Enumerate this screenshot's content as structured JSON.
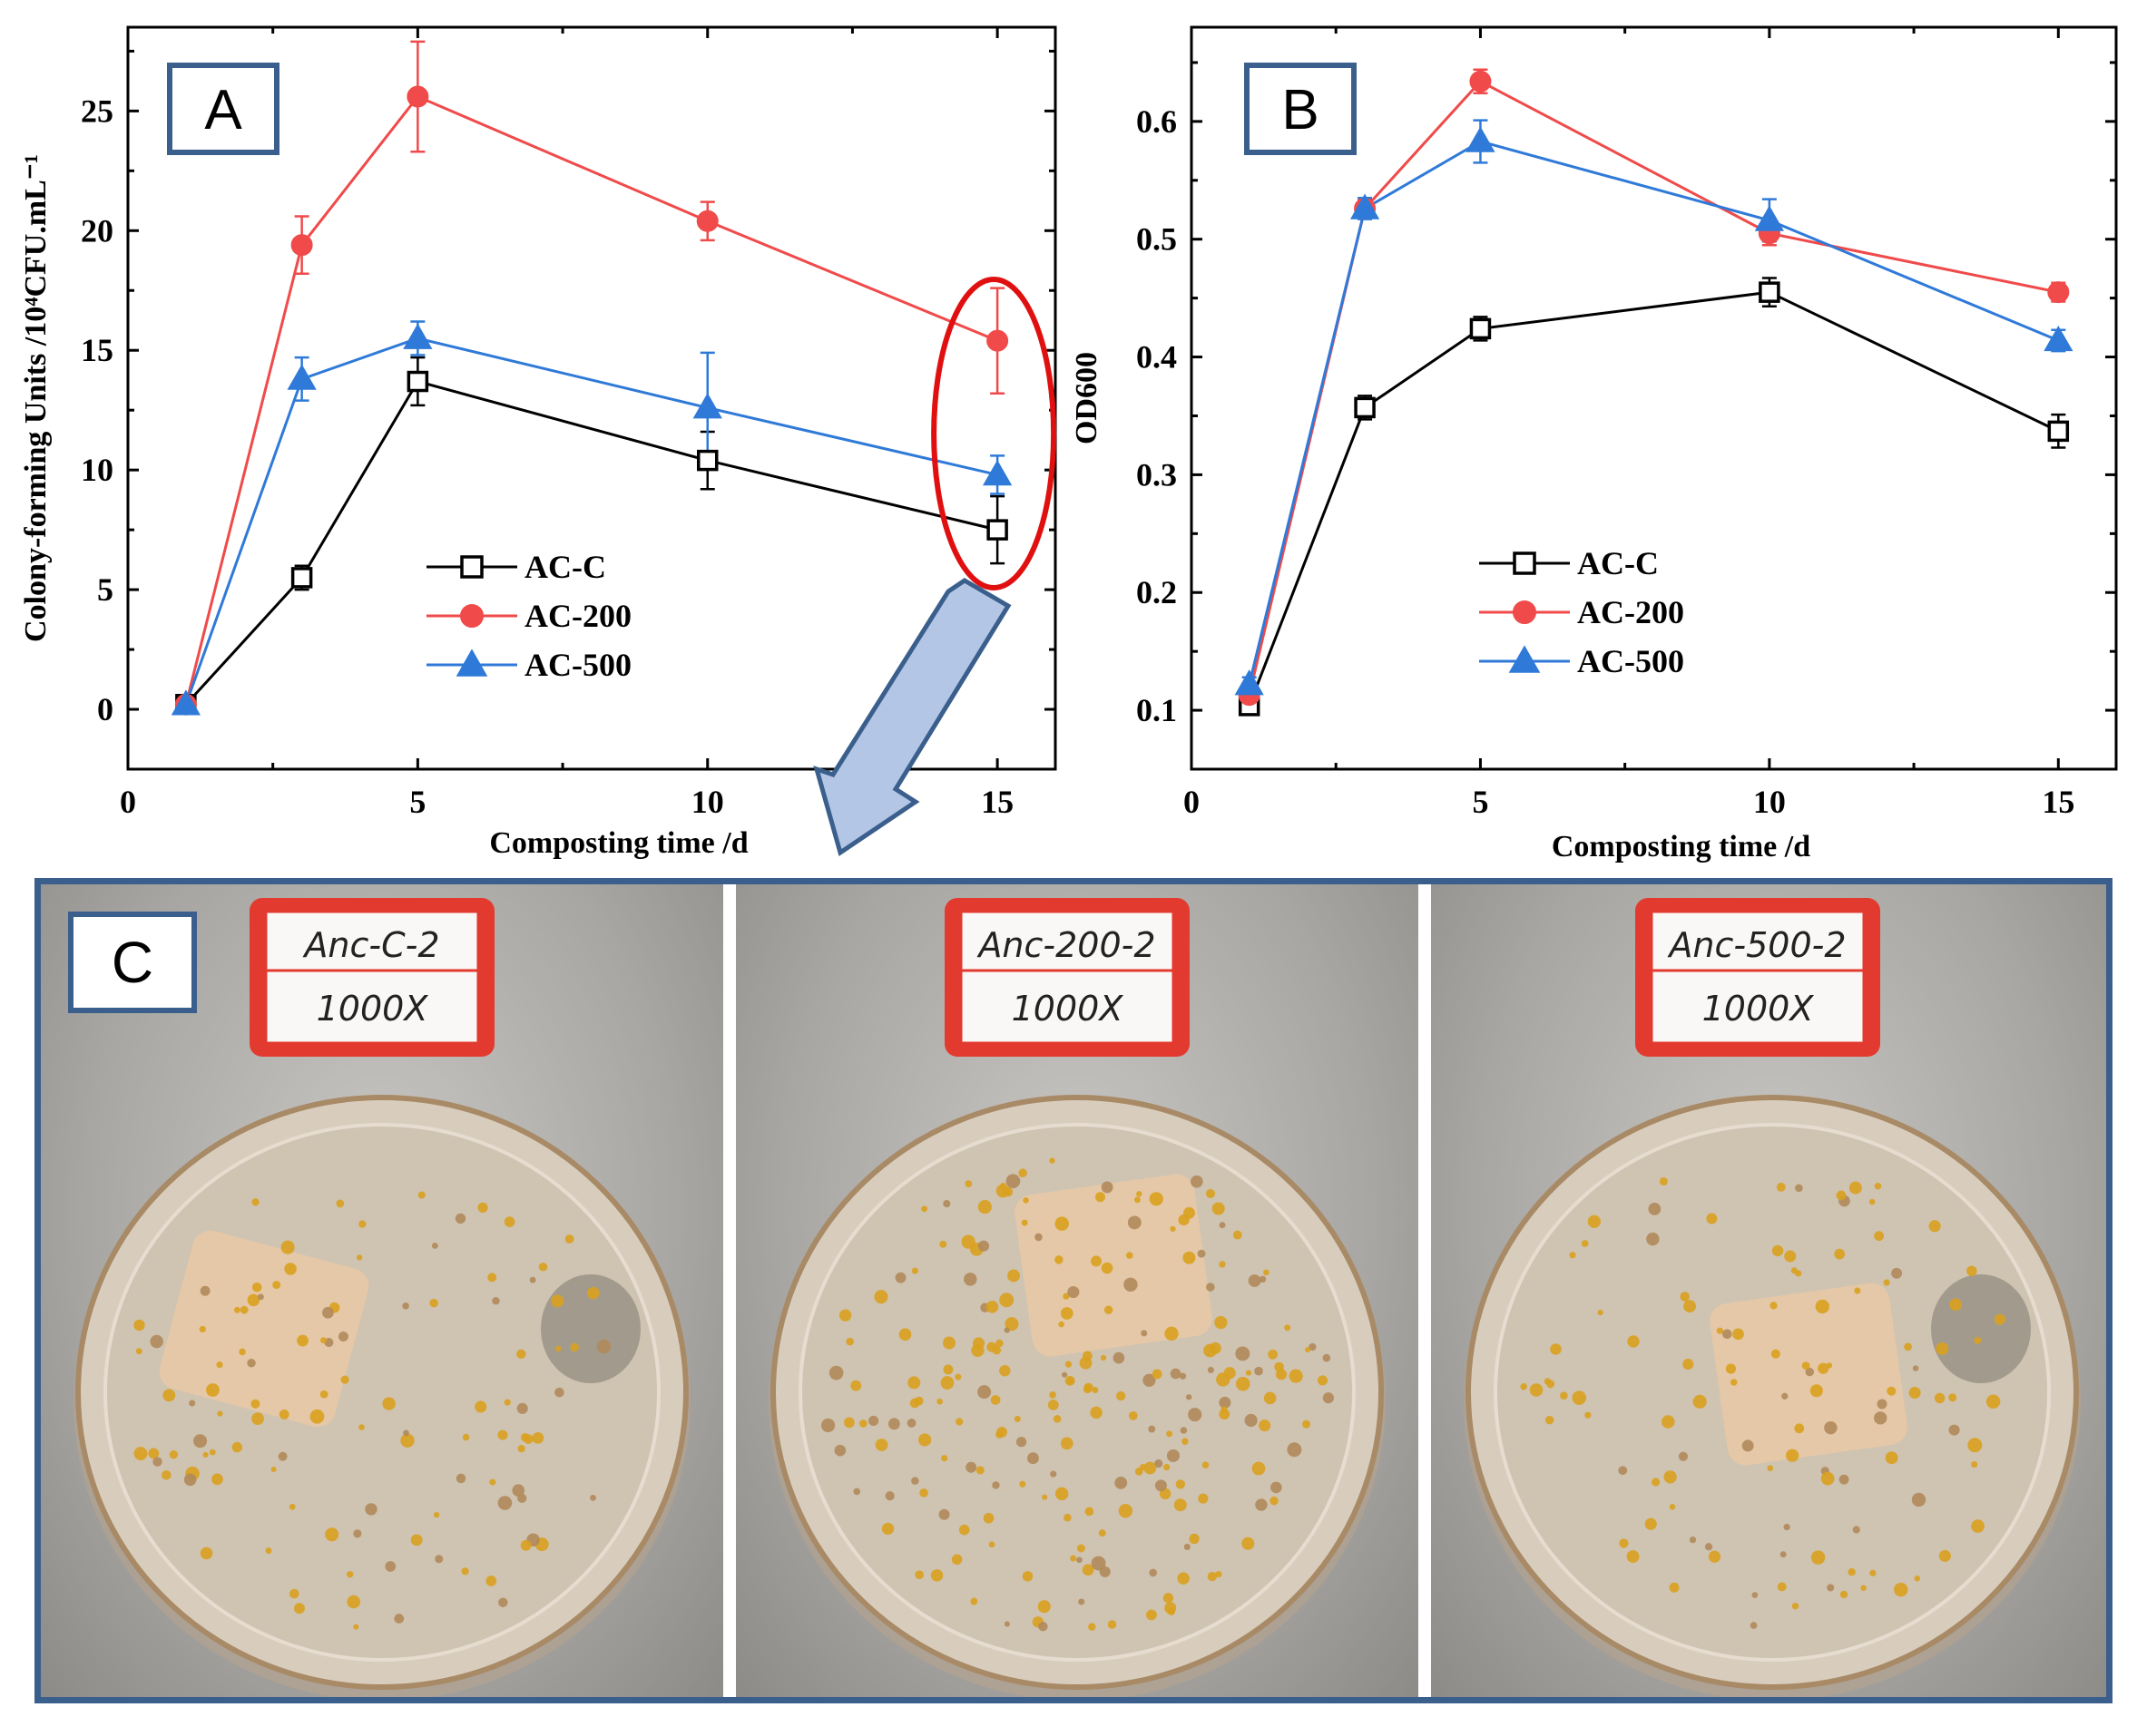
{
  "chart_data": [
    {
      "panel": "A",
      "type": "line",
      "x": [
        1,
        3,
        5,
        10,
        15
      ],
      "xlabel": "Composting time /d",
      "ylabel": "Colony-forming Units /10⁴CFU.mL⁻¹",
      "xlim": [
        0,
        16
      ],
      "ylim": [
        -2.5,
        28.5
      ],
      "xticks": [
        "0",
        "5",
        "10",
        "15"
      ],
      "yticks": [
        "0",
        "5",
        "10",
        "15",
        "20",
        "25"
      ],
      "legend_position": "lower-center",
      "series": [
        {
          "name": "AC-C",
          "marker": "open-square",
          "color": "#000000",
          "values": [
            0.2,
            5.5,
            13.7,
            10.4,
            7.5
          ],
          "errors": [
            0.2,
            0.5,
            1.0,
            1.2,
            1.4
          ]
        },
        {
          "name": "AC-200",
          "marker": "filled-circle",
          "color": "#f04a4a",
          "values": [
            0.2,
            19.4,
            25.6,
            20.4,
            15.4
          ],
          "errors": [
            0.2,
            1.2,
            2.3,
            0.8,
            2.2
          ]
        },
        {
          "name": "AC-500",
          "marker": "filled-triangle",
          "color": "#2f7ad8",
          "values": [
            0.2,
            13.8,
            15.5,
            12.6,
            9.8
          ],
          "errors": [
            0.2,
            0.9,
            0.7,
            2.3,
            0.8
          ]
        }
      ]
    },
    {
      "panel": "B",
      "type": "line",
      "x": [
        1,
        3,
        5,
        10,
        15
      ],
      "xlabel": "Composting time /d",
      "ylabel": "OD600",
      "xlim": [
        0,
        16
      ],
      "ylim": [
        0.05,
        0.68
      ],
      "xticks": [
        "0",
        "5",
        "10",
        "15"
      ],
      "yticks": [
        "0.1",
        "0.2",
        "0.3",
        "0.4",
        "0.5",
        "0.6"
      ],
      "legend_position": "lower-center",
      "series": [
        {
          "name": "AC-C",
          "marker": "open-square",
          "color": "#000000",
          "values": [
            0.104,
            0.357,
            0.424,
            0.455,
            0.337
          ],
          "errors": [
            0.008,
            0.01,
            0.01,
            0.012,
            0.014
          ]
        },
        {
          "name": "AC-200",
          "marker": "filled-circle",
          "color": "#f04a4a",
          "values": [
            0.113,
            0.526,
            0.634,
            0.505,
            0.455
          ],
          "errors": [
            0.006,
            0.008,
            0.01,
            0.01,
            0.008
          ]
        },
        {
          "name": "AC-500",
          "marker": "filled-triangle",
          "color": "#2f7ad8",
          "values": [
            0.122,
            0.526,
            0.583,
            0.516,
            0.414
          ],
          "errors": [
            0.006,
            0.009,
            0.018,
            0.018,
            0.009
          ]
        }
      ]
    }
  ],
  "highlight": {
    "panel": "A",
    "x": 15,
    "color": "#e01010"
  },
  "arrow_color": "#b3c6e6",
  "panel_c": {
    "letter": "C",
    "plates": [
      {
        "label_line1": "Anc-C-2",
        "label_line2": "1000X"
      },
      {
        "label_line1": "Anc-200-2",
        "label_line2": "1000X"
      },
      {
        "label_line1": "Anc-500-2",
        "label_line2": "1000X"
      }
    ]
  }
}
